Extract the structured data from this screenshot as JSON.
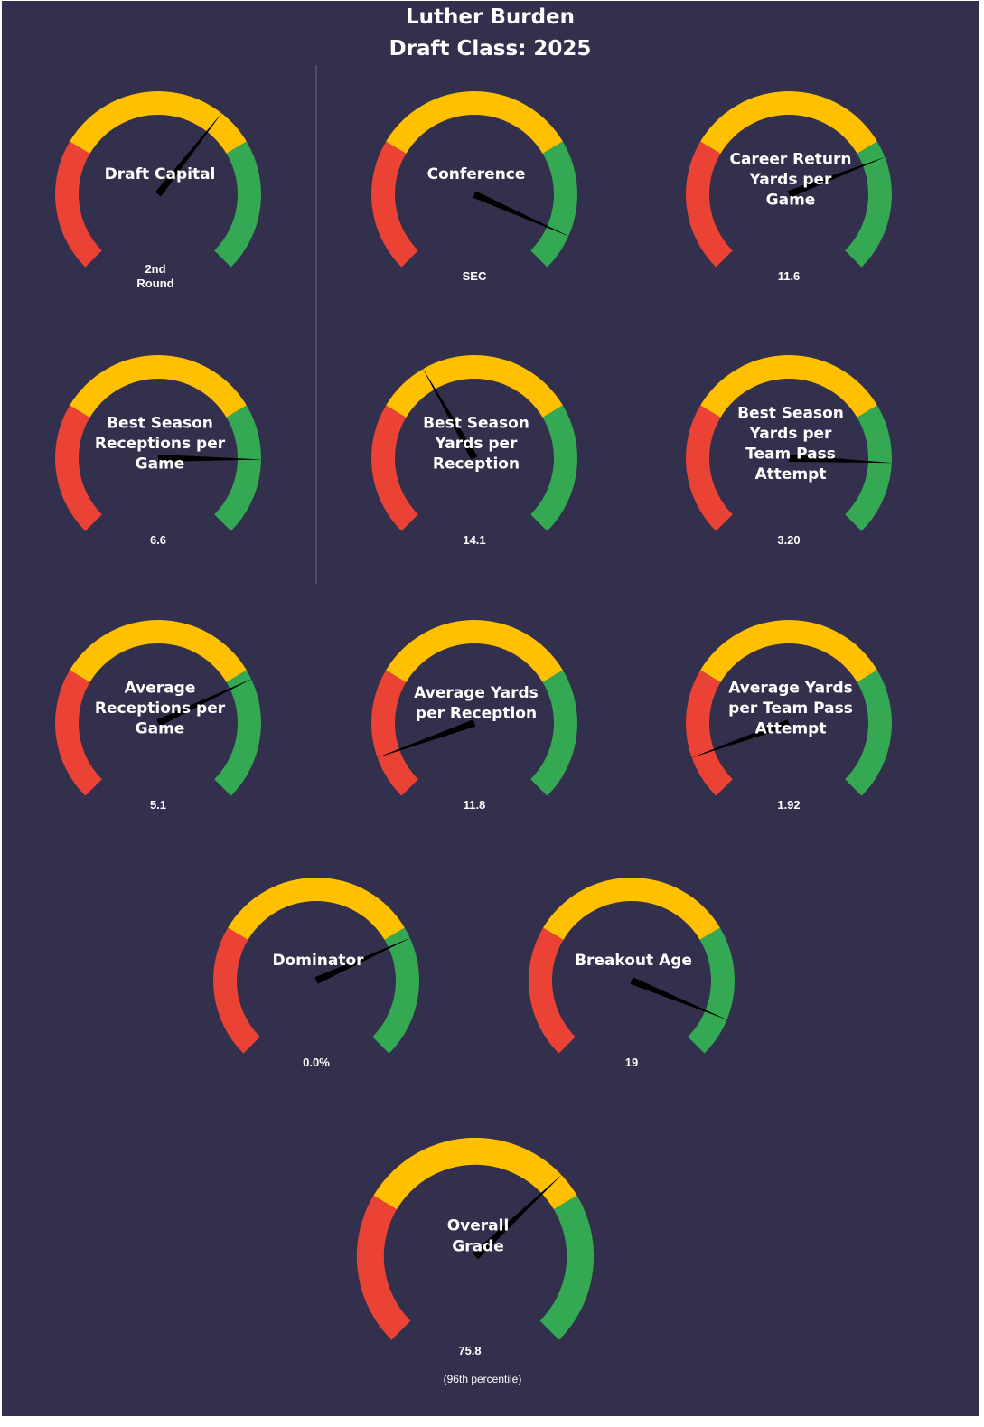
{
  "header": {
    "player_name": "Luther Burden",
    "draft_class": "Draft Class: 2025"
  },
  "colors": {
    "background": "#32304c",
    "low": "#ea4335",
    "mid": "#ffc000",
    "high": "#34a853",
    "needle": "#000000",
    "divider": "#6e6c86",
    "text": "#ffffff"
  },
  "chart_data": [
    {
      "type": "gauge",
      "title": [
        "Draft Capital"
      ],
      "value_label": [
        "2nd",
        "Round"
      ],
      "green_start_pct": 71.9,
      "needle_pct": 64.1
    },
    {
      "type": "gauge",
      "title": [
        "Conference"
      ],
      "value_label": [
        "SEC"
      ],
      "green_start_pct": 71.9,
      "needle_pct": 92.2
    },
    {
      "type": "gauge",
      "title": [
        "Career Return",
        "Yards per",
        "Game"
      ],
      "value_label": [
        "11.6"
      ],
      "green_start_pct": 71.9,
      "needle_pct": 75.5
    },
    {
      "type": "gauge",
      "title": [
        "Best Season",
        "Receptions per",
        "Game"
      ],
      "value_label": [
        "6.6"
      ],
      "green_start_pct": 71.9,
      "needle_pct": 83.6
    },
    {
      "type": "gauge",
      "title": [
        "Best Season",
        "Yards per",
        "Reception"
      ],
      "value_label": [
        "14.1"
      ],
      "green_start_pct": 71.9,
      "needle_pct": 38.9
    },
    {
      "type": "gauge",
      "title": [
        "Best Season",
        "Yards per",
        "Team Pass",
        "Attempt"
      ],
      "value_label": [
        "3.20"
      ],
      "green_start_pct": 71.9,
      "needle_pct": 84.3
    },
    {
      "type": "gauge",
      "title": [
        "Average",
        "Receptions per",
        "Game"
      ],
      "value_label": [
        "5.1"
      ],
      "green_start_pct": 71.9,
      "needle_pct": 74.0
    },
    {
      "type": "gauge",
      "title": [
        "Average Yards",
        "per Reception"
      ],
      "value_label": [
        "11.8"
      ],
      "green_start_pct": 71.9,
      "needle_pct": 9.4
    },
    {
      "type": "gauge",
      "title": [
        "Average Yards",
        "per Team Pass",
        "Attempt"
      ],
      "value_label": [
        "1.92"
      ],
      "green_start_pct": 71.9,
      "needle_pct": 9.4
    },
    {
      "type": "gauge",
      "title": [
        "Dominator"
      ],
      "value_label": [
        "0.0%"
      ],
      "green_start_pct": 71.9,
      "needle_pct": 74.3
    },
    {
      "type": "gauge",
      "title": [
        "Breakout Age"
      ],
      "value_label": [
        "19"
      ],
      "green_start_pct": 71.9,
      "needle_pct": 91.6
    },
    {
      "type": "gauge",
      "title": [
        "Overall",
        "Grade"
      ],
      "value_label": [
        "75.8"
      ],
      "sub_label": "(96th  percentile)",
      "green_start_pct": 71.9,
      "needle_pct": 67.3
    }
  ]
}
